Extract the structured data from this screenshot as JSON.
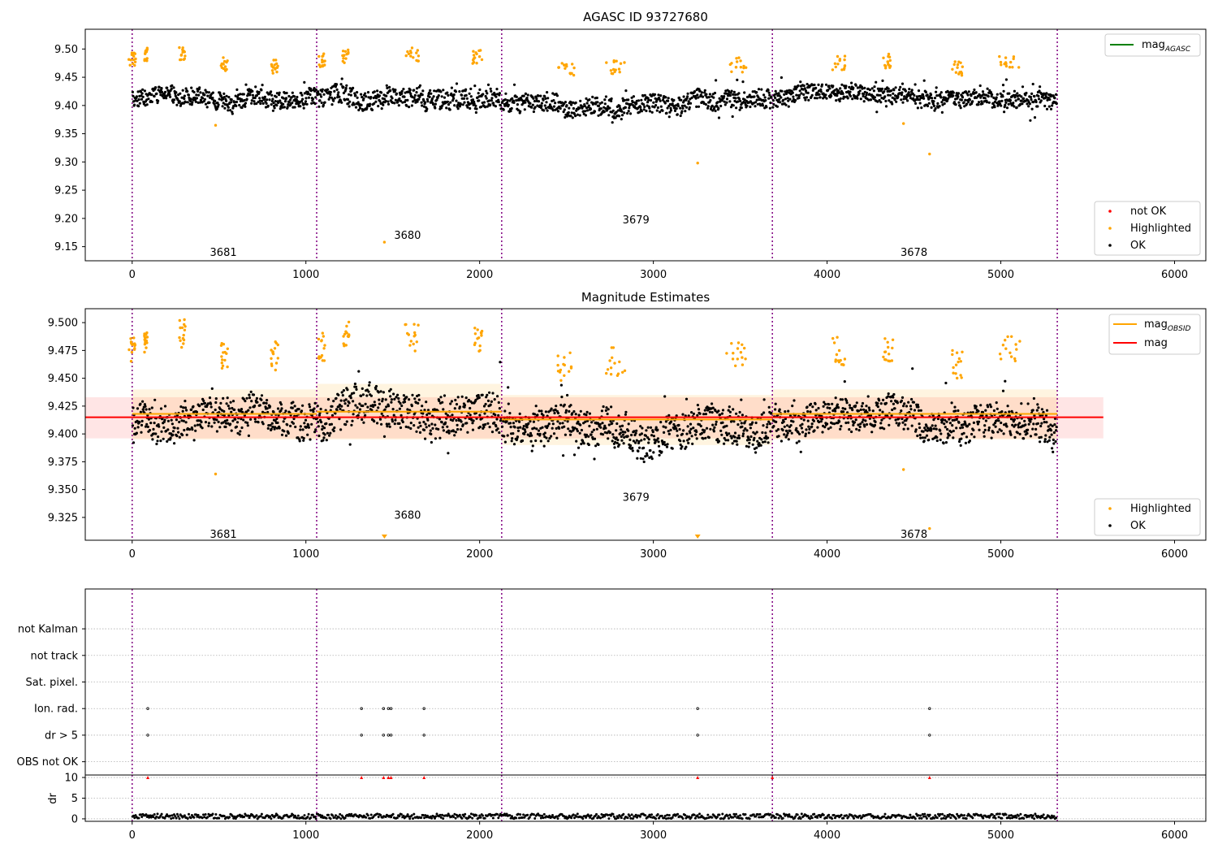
{
  "figure_title": "AGASC ID 93727680",
  "chart_data": [
    {
      "id": "top",
      "type": "scatter",
      "title": "AGASC ID 93727680",
      "xlim": [
        -270,
        6180
      ],
      "ylim": [
        9.125,
        9.535
      ],
      "x_ticks": [
        0,
        1000,
        2000,
        3000,
        4000,
        5000,
        6000
      ],
      "y_ticks": [
        "9.15",
        "9.20",
        "9.25",
        "9.30",
        "9.35",
        "9.40",
        "9.45",
        "9.50"
      ],
      "obsid_boundaries": [
        0,
        1062,
        2127,
        3685,
        5325
      ],
      "obsid_labels": [
        {
          "text": "3681",
          "x": 525,
          "y": 9.14
        },
        {
          "text": "3680",
          "x": 1585,
          "y": 9.17
        },
        {
          "text": "3679",
          "x": 2900,
          "y": 9.198
        },
        {
          "text": "3678",
          "x": 4500,
          "y": 9.14
        }
      ],
      "agasc_mag": 9.48,
      "segments_ok": [
        {
          "x0": 0,
          "x1": 1062,
          "base": 9.412,
          "spread": 0.018
        },
        {
          "x0": 1062,
          "x1": 2127,
          "base": 9.415,
          "spread": 0.022
        },
        {
          "x0": 2127,
          "x1": 3685,
          "base": 9.405,
          "spread": 0.02
        },
        {
          "x0": 3685,
          "x1": 5325,
          "base": 9.412,
          "spread": 0.018
        }
      ],
      "highlight_clusters": [
        {
          "x": 0,
          "w": 20,
          "y": 9.482
        },
        {
          "x": 80,
          "w": 10,
          "y": 9.49
        },
        {
          "x": 290,
          "w": 20,
          "y": 9.49
        },
        {
          "x": 530,
          "w": 20,
          "y": 9.472
        },
        {
          "x": 820,
          "w": 20,
          "y": 9.47
        },
        {
          "x": 1090,
          "w": 20,
          "y": 9.48
        },
        {
          "x": 1230,
          "w": 20,
          "y": 9.488
        },
        {
          "x": 1610,
          "w": 40,
          "y": 9.49
        },
        {
          "x": 1990,
          "w": 30,
          "y": 9.486
        },
        {
          "x": 2500,
          "w": 50,
          "y": 9.463
        },
        {
          "x": 2780,
          "w": 60,
          "y": 9.467
        },
        {
          "x": 3480,
          "w": 60,
          "y": 9.472
        },
        {
          "x": 4070,
          "w": 40,
          "y": 9.475
        },
        {
          "x": 4350,
          "w": 30,
          "y": 9.478
        },
        {
          "x": 4750,
          "w": 30,
          "y": 9.465
        },
        {
          "x": 5050,
          "w": 60,
          "y": 9.478
        }
      ],
      "highlight_outliers": [
        {
          "x": 1452,
          "y": 9.158
        },
        {
          "x": 3255,
          "y": 9.298
        },
        {
          "x": 4590,
          "y": 9.314
        },
        {
          "x": 480,
          "y": 9.365
        },
        {
          "x": 4440,
          "y": 9.368
        }
      ],
      "legend_top": [
        {
          "label": "mag",
          "sub": "AGASC",
          "color": "#008000",
          "kind": "line"
        }
      ],
      "legend_bottom": [
        {
          "label": "not OK",
          "color": "#ff0000",
          "kind": "dot"
        },
        {
          "label": "Highlighted",
          "color": "#ffa500",
          "kind": "dot"
        },
        {
          "label": "OK",
          "color": "#000000",
          "kind": "dot"
        }
      ],
      "legend_top_placement": "upper right",
      "legend_bottom_placement": "lower right"
    },
    {
      "id": "middle",
      "type": "scatter",
      "title": "Magnitude Estimates",
      "xlim": [
        -270,
        6180
      ],
      "ylim": [
        9.3045,
        9.5125
      ],
      "x_ticks": [
        0,
        1000,
        2000,
        3000,
        4000,
        5000,
        6000
      ],
      "y_ticks": [
        "9.325",
        "9.350",
        "9.375",
        "9.400",
        "9.425",
        "9.450",
        "9.475",
        "9.500"
      ],
      "obsid_boundaries": [
        0,
        1062,
        2127,
        3685,
        5325
      ],
      "obsid_labels": [
        {
          "text": "3681",
          "x": 525,
          "y": 9.31
        },
        {
          "text": "3680",
          "x": 1585,
          "y": 9.327
        },
        {
          "text": "3679",
          "x": 2900,
          "y": 9.343
        },
        {
          "text": "3678",
          "x": 4500,
          "y": 9.31
        }
      ],
      "mag": 9.415,
      "mag_band": [
        9.396,
        9.433
      ],
      "mag_band_x": [
        -270,
        5590
      ],
      "mag_obsid": [
        {
          "x0": 0,
          "x1": 1062,
          "mag": 9.418,
          "lo": 9.395,
          "hi": 9.44
        },
        {
          "x0": 1062,
          "x1": 2127,
          "mag": 9.42,
          "lo": 9.395,
          "hi": 9.445
        },
        {
          "x0": 2127,
          "x1": 3685,
          "mag": 9.413,
          "lo": 9.39,
          "hi": 9.435
        },
        {
          "x0": 3685,
          "x1": 5325,
          "mag": 9.418,
          "lo": 9.395,
          "hi": 9.44
        }
      ],
      "segments_ok": [
        {
          "x0": 0,
          "x1": 1062,
          "base": 9.412,
          "spread": 0.018
        },
        {
          "x0": 1062,
          "x1": 2127,
          "base": 9.415,
          "spread": 0.022
        },
        {
          "x0": 2127,
          "x1": 3685,
          "base": 9.405,
          "spread": 0.02
        },
        {
          "x0": 3685,
          "x1": 5325,
          "base": 9.412,
          "spread": 0.018
        }
      ],
      "highlight_clusters": [
        {
          "x": 0,
          "w": 20,
          "y": 9.478
        },
        {
          "x": 80,
          "w": 10,
          "y": 9.485
        },
        {
          "x": 290,
          "w": 20,
          "y": 9.49
        },
        {
          "x": 530,
          "w": 20,
          "y": 9.472
        },
        {
          "x": 820,
          "w": 20,
          "y": 9.47
        },
        {
          "x": 1090,
          "w": 20,
          "y": 9.478
        },
        {
          "x": 1230,
          "w": 20,
          "y": 9.488
        },
        {
          "x": 1610,
          "w": 40,
          "y": 9.487
        },
        {
          "x": 1990,
          "w": 30,
          "y": 9.483
        },
        {
          "x": 2500,
          "w": 50,
          "y": 9.46
        },
        {
          "x": 2780,
          "w": 60,
          "y": 9.465
        },
        {
          "x": 3480,
          "w": 60,
          "y": 9.47
        },
        {
          "x": 4070,
          "w": 40,
          "y": 9.475
        },
        {
          "x": 4350,
          "w": 30,
          "y": 9.478
        },
        {
          "x": 4750,
          "w": 30,
          "y": 9.462
        },
        {
          "x": 5050,
          "w": 60,
          "y": 9.478
        }
      ],
      "highlight_outliers": [
        {
          "x": 480,
          "y": 9.364
        },
        {
          "x": 4440,
          "y": 9.368
        },
        {
          "x": 4590,
          "y": 9.315
        }
      ],
      "offscale_markers": [
        {
          "x": 1452
        },
        {
          "x": 3255
        }
      ],
      "legend_top": [
        {
          "label": "mag",
          "sub": "OBSID",
          "color": "#ffa500",
          "kind": "line"
        },
        {
          "label": "mag",
          "sub": "",
          "color": "#ff0000",
          "kind": "line"
        }
      ],
      "legend_bottom": [
        {
          "label": "Highlighted",
          "color": "#ffa500",
          "kind": "dot"
        },
        {
          "label": "OK",
          "color": "#000000",
          "kind": "dot"
        }
      ],
      "legend_top_placement": "upper right",
      "legend_bottom_placement": "lower right"
    },
    {
      "id": "flags",
      "type": "scatter",
      "title": "",
      "xlim": [
        -270,
        6180
      ],
      "ylim": [
        -0.5,
        6.5
      ],
      "x_ticks": [],
      "categories": [
        "OBS not OK",
        "dr > 5",
        "Ion. rad.",
        "Sat. pixel.",
        "not track",
        "not Kalman"
      ],
      "obsid_boundaries": [
        0,
        1062,
        2127,
        3685,
        5325
      ],
      "flags": [
        {
          "category": "dr > 5",
          "x": [
            90,
            1320,
            1447,
            1475,
            1490,
            1680,
            3255,
            4590
          ]
        },
        {
          "category": "Ion. rad.",
          "x": [
            90,
            1320,
            1447,
            1475,
            1490,
            1680,
            3255,
            4590
          ]
        }
      ]
    },
    {
      "id": "dr",
      "type": "scatter",
      "title": "",
      "ylabel": "dr",
      "xlim": [
        -270,
        6180
      ],
      "ylim": [
        -0.6,
        10.6
      ],
      "x_ticks": [
        0,
        1000,
        2000,
        3000,
        4000,
        5000,
        6000
      ],
      "y_ticks": [
        "0",
        "5",
        "10"
      ],
      "obsid_boundaries": [
        0,
        1062,
        2127,
        3685,
        5325
      ],
      "dr_baseline": [
        0,
        1.2
      ],
      "clipped_points": {
        "y": 10,
        "x": [
          90,
          1320,
          1447,
          1475,
          1490,
          1680,
          3255,
          3685,
          4590
        ]
      }
    }
  ]
}
